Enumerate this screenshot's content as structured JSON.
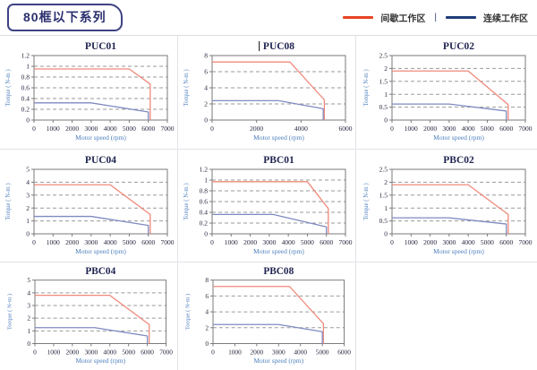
{
  "header": {
    "badge": "80框以下系列"
  },
  "legend": {
    "items": [
      {
        "label": "间歇工作区",
        "color": "#e64426"
      },
      {
        "label": "连续工作区",
        "color": "#1f3d7a"
      }
    ],
    "separator": "|"
  },
  "styles": {
    "red_curve": "#f0897b",
    "blue_curve": "#7f8ac2",
    "grid_line": "#9a9a9a",
    "plot_border": "#7a7a7a",
    "title_color": "#1f2350",
    "tick_color": "#26263f",
    "axis_label_color": "#4d7fbe"
  },
  "chart_data": [
    {
      "type": "line",
      "title": "PUC01",
      "cursor_artifact": false,
      "xlabel": "Motor speed (rpm)",
      "ylabel": "Torque ( N-m )",
      "xlim": [
        0,
        7000
      ],
      "xticks": [
        0,
        1000,
        2000,
        3000,
        4000,
        5000,
        6000,
        7000
      ],
      "ylim": [
        0,
        1.2
      ],
      "yticks": [
        0,
        0.2,
        0.4,
        0.6,
        0.8,
        1,
        1.2
      ],
      "grid": true,
      "legend_position": "none",
      "series": [
        {
          "name": "间歇工作区",
          "color_key": "red_curve",
          "points": [
            [
              0,
              0.95
            ],
            [
              5000,
              0.95
            ],
            [
              6100,
              0.67
            ],
            [
              6100,
              0
            ]
          ]
        },
        {
          "name": "连续工作区",
          "color_key": "blue_curve",
          "points": [
            [
              0,
              0.32
            ],
            [
              3000,
              0.32
            ],
            [
              6000,
              0.15
            ],
            [
              6000,
              0
            ]
          ]
        }
      ]
    },
    {
      "type": "line",
      "title": "PUC08",
      "cursor_artifact": true,
      "xlabel": "Motor speed (rpm)",
      "ylabel": "Torque ( N-m )",
      "xlim": [
        0,
        6000
      ],
      "xticks": [
        0,
        2000,
        4000,
        6000
      ],
      "ylim": [
        0,
        8
      ],
      "yticks": [
        0,
        2,
        4,
        6,
        8
      ],
      "grid": true,
      "legend_position": "none",
      "series": [
        {
          "name": "间歇工作区",
          "color_key": "red_curve",
          "points": [
            [
              0,
              7.2
            ],
            [
              3500,
              7.2
            ],
            [
              5050,
              2.5
            ],
            [
              5050,
              0
            ]
          ]
        },
        {
          "name": "连续工作区",
          "color_key": "blue_curve",
          "points": [
            [
              0,
              2.4
            ],
            [
              3000,
              2.4
            ],
            [
              5000,
              1.4
            ],
            [
              5000,
              0
            ]
          ]
        }
      ]
    },
    {
      "type": "line",
      "title": "PUC02",
      "cursor_artifact": false,
      "xlabel": "Motor speed (rpm)",
      "ylabel": "Torque ( N-m )",
      "xlim": [
        0,
        7000
      ],
      "xticks": [
        0,
        1000,
        2000,
        3000,
        4000,
        5000,
        6000,
        7000
      ],
      "ylim": [
        0,
        2.5
      ],
      "yticks": [
        0,
        0.5,
        1,
        1.5,
        2,
        2.5
      ],
      "grid": true,
      "legend_position": "none",
      "series": [
        {
          "name": "间歇工作区",
          "color_key": "red_curve",
          "points": [
            [
              0,
              1.9
            ],
            [
              4000,
              1.9
            ],
            [
              6100,
              0.6
            ],
            [
              6100,
              0
            ]
          ]
        },
        {
          "name": "连续工作区",
          "color_key": "blue_curve",
          "points": [
            [
              0,
              0.62
            ],
            [
              3000,
              0.62
            ],
            [
              6000,
              0.35
            ],
            [
              6000,
              0
            ]
          ]
        }
      ]
    },
    {
      "type": "line",
      "title": "PUC04",
      "cursor_artifact": false,
      "xlabel": "Motor speed (rpm)",
      "ylabel": "Torque ( N-m )",
      "xlim": [
        0,
        7000
      ],
      "xticks": [
        0,
        1000,
        2000,
        3000,
        4000,
        5000,
        6000,
        7000
      ],
      "ylim": [
        0,
        5
      ],
      "yticks": [
        0,
        1,
        2,
        3,
        4,
        5
      ],
      "grid": true,
      "legend_position": "none",
      "series": [
        {
          "name": "间歇工作区",
          "color_key": "red_curve",
          "points": [
            [
              0,
              3.8
            ],
            [
              4000,
              3.8
            ],
            [
              6100,
              1.5
            ],
            [
              6100,
              0
            ]
          ]
        },
        {
          "name": "连续工作区",
          "color_key": "blue_curve",
          "points": [
            [
              0,
              1.35
            ],
            [
              3000,
              1.35
            ],
            [
              6000,
              0.65
            ],
            [
              6000,
              0
            ]
          ]
        }
      ]
    },
    {
      "type": "line",
      "title": "PBC01",
      "cursor_artifact": false,
      "xlabel": "Motor speed (rpm)",
      "ylabel": "Torque ( N-m )",
      "xlim": [
        0,
        7000
      ],
      "xticks": [
        0,
        1000,
        2000,
        3000,
        4000,
        5000,
        6000,
        7000
      ],
      "ylim": [
        0,
        1.2
      ],
      "yticks": [
        0,
        0.2,
        0.4,
        0.6,
        0.8,
        1,
        1.2
      ],
      "grid": true,
      "legend_position": "none",
      "series": [
        {
          "name": "间歇工作区",
          "color_key": "red_curve",
          "points": [
            [
              0,
              0.97
            ],
            [
              5000,
              0.97
            ],
            [
              6100,
              0.47
            ],
            [
              6100,
              0
            ]
          ]
        },
        {
          "name": "连续工作区",
          "color_key": "blue_curve",
          "points": [
            [
              0,
              0.36
            ],
            [
              3200,
              0.36
            ],
            [
              6000,
              0.13
            ],
            [
              6000,
              0
            ]
          ]
        }
      ]
    },
    {
      "type": "line",
      "title": "PBC02",
      "cursor_artifact": false,
      "xlabel": "Motor speed (rpm)",
      "ylabel": "Torque ( N-m )",
      "xlim": [
        0,
        7000
      ],
      "xticks": [
        0,
        1000,
        2000,
        3000,
        4000,
        5000,
        6000,
        7000
      ],
      "ylim": [
        0,
        2.5
      ],
      "yticks": [
        0,
        0.5,
        1,
        1.5,
        2,
        2.5
      ],
      "grid": true,
      "legend_position": "none",
      "series": [
        {
          "name": "间歇工作区",
          "color_key": "red_curve",
          "points": [
            [
              0,
              1.9
            ],
            [
              4000,
              1.9
            ],
            [
              6100,
              0.75
            ],
            [
              6100,
              0
            ]
          ]
        },
        {
          "name": "连续工作区",
          "color_key": "blue_curve",
          "points": [
            [
              0,
              0.62
            ],
            [
              3000,
              0.62
            ],
            [
              6000,
              0.38
            ],
            [
              6000,
              0
            ]
          ]
        }
      ]
    },
    {
      "type": "line",
      "title": "PBC04",
      "cursor_artifact": false,
      "xlabel": "Motor speed (rpm)",
      "ylabel": "Torque ( N-m )",
      "xlim": [
        0,
        7000
      ],
      "xticks": [
        0,
        1000,
        2000,
        3000,
        4000,
        5000,
        6000,
        7000
      ],
      "ylim": [
        0,
        5
      ],
      "yticks": [
        0,
        1,
        2,
        3,
        4,
        5
      ],
      "grid": true,
      "legend_position": "none",
      "series": [
        {
          "name": "间歇工作区",
          "color_key": "red_curve",
          "points": [
            [
              0,
              3.8
            ],
            [
              4000,
              3.8
            ],
            [
              6100,
              1.5
            ],
            [
              6100,
              0
            ]
          ]
        },
        {
          "name": "连续工作区",
          "color_key": "blue_curve",
          "points": [
            [
              0,
              1.25
            ],
            [
              3200,
              1.25
            ],
            [
              6000,
              0.6
            ],
            [
              6000,
              0
            ]
          ]
        }
      ]
    },
    {
      "type": "line",
      "title": "PBC08",
      "cursor_artifact": false,
      "xlabel": "Motor speed (rpm)",
      "ylabel": "Torque ( N-m )",
      "xlim": [
        0,
        6000
      ],
      "xticks": [
        0,
        1000,
        2000,
        3000,
        4000,
        5000,
        6000
      ],
      "ylim": [
        0,
        8
      ],
      "yticks": [
        0,
        2,
        4,
        6,
        8
      ],
      "grid": true,
      "legend_position": "none",
      "series": [
        {
          "name": "间歇工作区",
          "color_key": "red_curve",
          "points": [
            [
              0,
              7.2
            ],
            [
              3500,
              7.2
            ],
            [
              5050,
              2.5
            ],
            [
              5050,
              0
            ]
          ]
        },
        {
          "name": "连续工作区",
          "color_key": "blue_curve",
          "points": [
            [
              0,
              2.4
            ],
            [
              3000,
              2.4
            ],
            [
              5000,
              1.5
            ],
            [
              5000,
              0
            ]
          ]
        }
      ]
    }
  ]
}
